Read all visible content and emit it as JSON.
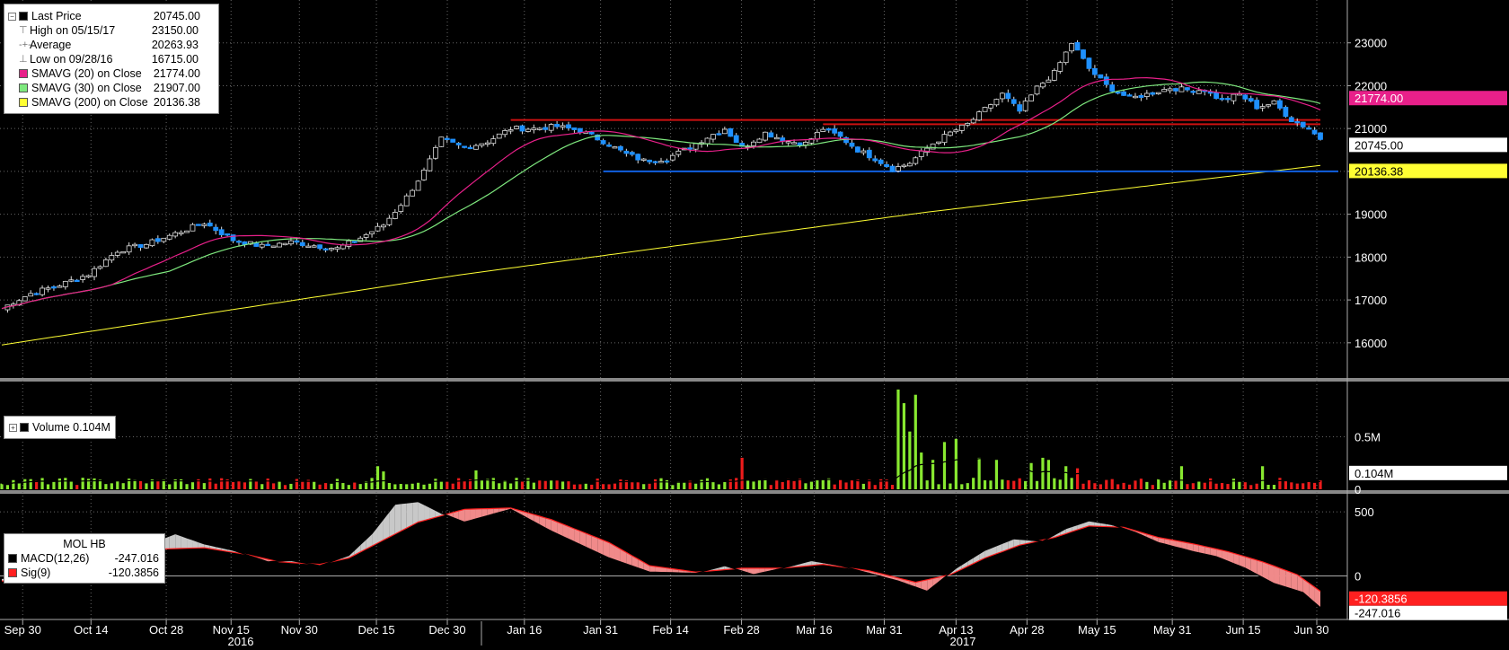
{
  "price_legend": {
    "items": [
      {
        "label": "Last Price",
        "value": "20745.00",
        "color": "#000000",
        "marker": "square"
      },
      {
        "label": "High on 05/15/17",
        "value": "23150.00",
        "color": "#777777",
        "marker": "tee"
      },
      {
        "label": "Average",
        "value": "20263.93",
        "color": "#777777",
        "marker": "plus"
      },
      {
        "label": "Low on 09/28/16",
        "value": "16715.00",
        "color": "#777777",
        "marker": "tee-down"
      },
      {
        "label": "SMAVG (20) on Close",
        "value": "21774.00",
        "color": "#e8208a",
        "marker": "square"
      },
      {
        "label": "SMAVG (30) on Close",
        "value": "21907.00",
        "color": "#7ee87e",
        "marker": "square"
      },
      {
        "label": "SMAVG (200) on Close",
        "value": "20136.38",
        "color": "#ffff33",
        "marker": "square"
      }
    ]
  },
  "volume_legend": {
    "label": "Volume 0.104M"
  },
  "macd_legend": {
    "title": "MOL HB",
    "items": [
      {
        "label": "MACD(12,26)",
        "value": "-247.016",
        "color": "#000000"
      },
      {
        "label": "Sig(9)",
        "value": "-120.3856",
        "color": "#ff2020"
      }
    ]
  },
  "price_badges": [
    {
      "text": "21774.00",
      "value": 21774,
      "bg": "#e8208a",
      "fg": "#ffffff"
    },
    {
      "text": "20745.00",
      "value": 20745,
      "bg": "#ffffff",
      "fg": "#000000"
    },
    {
      "text": "20136.38",
      "value": 20136.38,
      "bg": "#ffff33",
      "fg": "#000000"
    }
  ],
  "volume_badge": {
    "text": "0.104M",
    "value": 0.104,
    "bg": "#ffffff",
    "fg": "#000000"
  },
  "macd_badges": [
    {
      "text": "-120.3856",
      "value": -120.3856,
      "bg": "#ff2020",
      "fg": "#ffffff"
    },
    {
      "text": "-247.016",
      "value": -247.016,
      "bg": "#ffffff",
      "fg": "#000000"
    }
  ],
  "chart_data": [
    {
      "type": "candlestick",
      "ylim": [
        15200,
        24000
      ],
      "y_ticks": [
        16000,
        17000,
        18000,
        19000,
        20000,
        21000,
        22000,
        23000
      ],
      "x_ticks": [
        "Sep 30",
        "Oct 14",
        "Oct 28",
        "Nov 15",
        "Nov 30",
        "Dec 15",
        "Dec 30",
        "Jan 16",
        "Jan 31",
        "Feb 14",
        "Feb 28",
        "Mar 16",
        "Mar 31",
        "Apr 13",
        "Apr 28",
        "May 15",
        "May 31",
        "Jun 15",
        "Jun 30"
      ],
      "year_labels": [
        "2016",
        "2017"
      ],
      "grid": true,
      "close_anchors": [
        [
          0,
          16800
        ],
        [
          2,
          16950
        ],
        [
          5,
          17150
        ],
        [
          10,
          17350
        ],
        [
          15,
          17600
        ],
        [
          20,
          18150
        ],
        [
          25,
          18300
        ],
        [
          30,
          18550
        ],
        [
          35,
          18800
        ],
        [
          40,
          18400
        ],
        [
          45,
          18250
        ],
        [
          50,
          18350
        ],
        [
          55,
          18250
        ],
        [
          58,
          18200
        ],
        [
          62,
          18450
        ],
        [
          66,
          18750
        ],
        [
          70,
          19400
        ],
        [
          73,
          20000
        ],
        [
          76,
          20750
        ],
        [
          80,
          20550
        ],
        [
          84,
          20700
        ],
        [
          88,
          21000
        ],
        [
          92,
          21000
        ],
        [
          96,
          21050
        ],
        [
          100,
          20950
        ],
        [
          104,
          20700
        ],
        [
          108,
          20400
        ],
        [
          111,
          20250
        ],
        [
          115,
          20300
        ],
        [
          118,
          20500
        ],
        [
          122,
          20800
        ],
        [
          125,
          21000
        ],
        [
          128,
          20550
        ],
        [
          132,
          20900
        ],
        [
          136,
          20700
        ],
        [
          139,
          20650
        ],
        [
          142,
          21000
        ],
        [
          145,
          20800
        ],
        [
          148,
          20500
        ],
        [
          151,
          20300
        ],
        [
          154,
          20050
        ],
        [
          157,
          20200
        ],
        [
          161,
          20650
        ],
        [
          164,
          20900
        ],
        [
          167,
          21100
        ],
        [
          170,
          21450
        ],
        [
          173,
          21800
        ],
        [
          176,
          21400
        ],
        [
          179,
          21950
        ],
        [
          182,
          22300
        ],
        [
          185,
          23000
        ],
        [
          188,
          22400
        ],
        [
          191,
          22000
        ],
        [
          195,
          21700
        ],
        [
          198,
          21800
        ],
        [
          202,
          21950
        ],
        [
          205,
          21900
        ],
        [
          208,
          21900
        ],
        [
          211,
          21650
        ],
        [
          214,
          21800
        ],
        [
          217,
          21500
        ],
        [
          220,
          21600
        ],
        [
          223,
          21200
        ],
        [
          226,
          21000
        ],
        [
          228,
          20745
        ]
      ],
      "sma200_anchors": [
        [
          0,
          15950
        ],
        [
          80,
          17600
        ],
        [
          160,
          19050
        ],
        [
          228,
          20140
        ]
      ],
      "resistance_lines": [
        {
          "value": 21200,
          "start_index": 88,
          "end_index": 228,
          "color": "#cc1111"
        },
        {
          "value": 21100,
          "start_index": 142,
          "end_index": 228,
          "color": "#cc1111"
        }
      ],
      "support_line": {
        "value": 20000,
        "start_index": 104,
        "end_index": 228,
        "color": "#1060e0"
      }
    },
    {
      "type": "bar",
      "ylim": [
        0,
        1.0
      ],
      "y_ticks": [
        0,
        0.5
      ],
      "y_tick_labels": [
        "0",
        "0.5M"
      ],
      "spikes": [
        [
          14,
          0.11
        ],
        [
          65,
          0.22
        ],
        [
          66,
          0.17
        ],
        [
          82,
          0.18
        ],
        [
          128,
          0.3
        ],
        [
          155,
          0.95
        ],
        [
          156,
          0.82
        ],
        [
          157,
          0.55
        ],
        [
          158,
          0.9
        ],
        [
          159,
          0.35
        ],
        [
          161,
          0.28
        ],
        [
          163,
          0.45
        ],
        [
          165,
          0.48
        ],
        [
          169,
          0.3
        ],
        [
          172,
          0.28
        ],
        [
          178,
          0.25
        ],
        [
          180,
          0.3
        ],
        [
          181,
          0.28
        ],
        [
          184,
          0.22
        ],
        [
          186,
          0.2
        ],
        [
          204,
          0.22
        ],
        [
          218,
          0.22
        ]
      ]
    },
    {
      "type": "line",
      "ylim": [
        -340,
        620
      ],
      "y_ticks": [
        0,
        500
      ],
      "series": [
        {
          "name": "MACD(12,26)",
          "color": "#000000",
          "anchors": [
            [
              0,
              -20
            ],
            [
              10,
              0
            ],
            [
              20,
              160
            ],
            [
              25,
              240
            ],
            [
              30,
              330
            ],
            [
              35,
              250
            ],
            [
              40,
              200
            ],
            [
              46,
              110
            ],
            [
              50,
              120
            ],
            [
              55,
              80
            ],
            [
              60,
              160
            ],
            [
              64,
              330
            ],
            [
              68,
              560
            ],
            [
              72,
              580
            ],
            [
              76,
              490
            ],
            [
              80,
              420
            ],
            [
              88,
              520
            ],
            [
              95,
              350
            ],
            [
              105,
              140
            ],
            [
              112,
              30
            ],
            [
              120,
              20
            ],
            [
              125,
              80
            ],
            [
              130,
              10
            ],
            [
              135,
              60
            ],
            [
              140,
              120
            ],
            [
              145,
              80
            ],
            [
              150,
              20
            ],
            [
              155,
              -40
            ],
            [
              160,
              -120
            ],
            [
              165,
              60
            ],
            [
              170,
              200
            ],
            [
              175,
              290
            ],
            [
              180,
              270
            ],
            [
              184,
              370
            ],
            [
              188,
              430
            ],
            [
              192,
              400
            ],
            [
              196,
              340
            ],
            [
              200,
              260
            ],
            [
              206,
              190
            ],
            [
              210,
              150
            ],
            [
              215,
              60
            ],
            [
              220,
              -60
            ],
            [
              225,
              -130
            ],
            [
              228,
              -247
            ]
          ]
        },
        {
          "name": "Sig(9)",
          "color": "#ff2020",
          "anchors": [
            [
              0,
              -40
            ],
            [
              10,
              -10
            ],
            [
              20,
              150
            ],
            [
              28,
              210
            ],
            [
              35,
              220
            ],
            [
              42,
              170
            ],
            [
              48,
              110
            ],
            [
              55,
              90
            ],
            [
              60,
              140
            ],
            [
              66,
              280
            ],
            [
              72,
              420
            ],
            [
              80,
              520
            ],
            [
              88,
              530
            ],
            [
              95,
              440
            ],
            [
              105,
              260
            ],
            [
              112,
              80
            ],
            [
              120,
              30
            ],
            [
              128,
              60
            ],
            [
              135,
              60
            ],
            [
              142,
              90
            ],
            [
              150,
              40
            ],
            [
              158,
              -50
            ],
            [
              164,
              10
            ],
            [
              170,
              140
            ],
            [
              176,
              240
            ],
            [
              182,
              300
            ],
            [
              188,
              390
            ],
            [
              194,
              380
            ],
            [
              200,
              300
            ],
            [
              206,
              250
            ],
            [
              212,
              190
            ],
            [
              218,
              110
            ],
            [
              224,
              10
            ],
            [
              228,
              -120
            ]
          ]
        }
      ]
    }
  ]
}
